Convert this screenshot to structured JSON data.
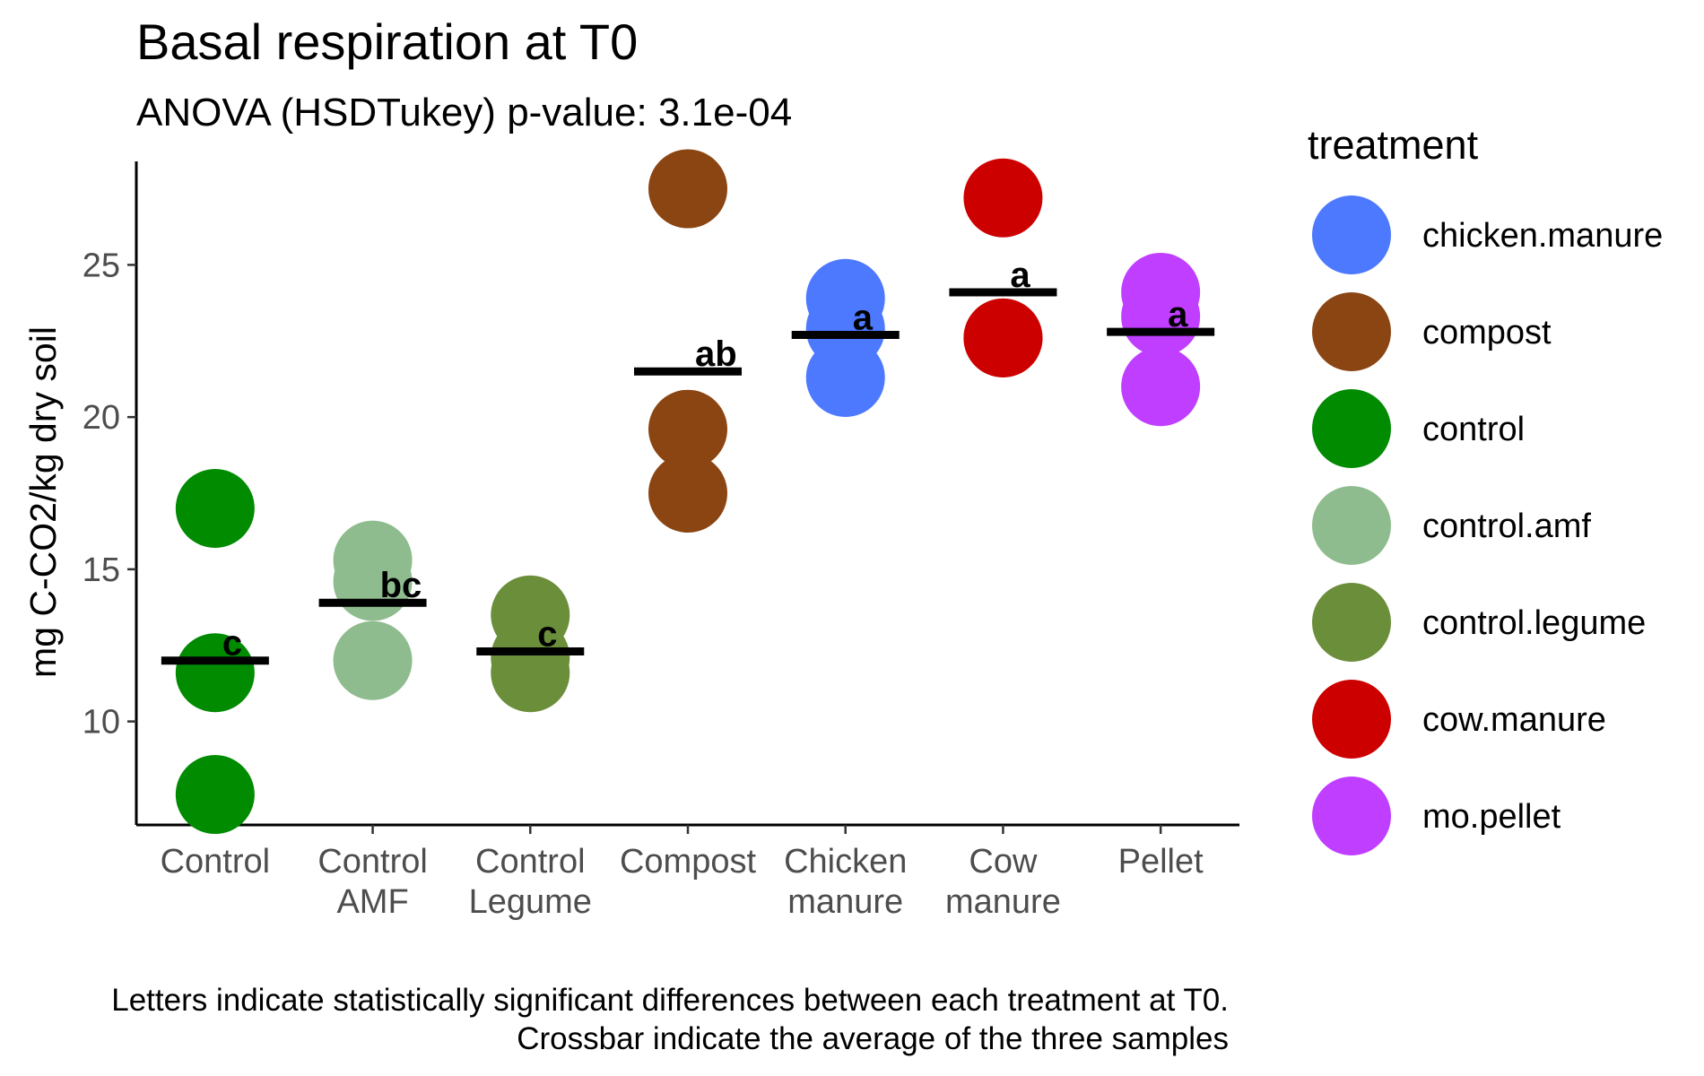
{
  "chart_data": {
    "type": "scatter",
    "title": "Basal respiration at T0",
    "subtitle": "ANOVA (HSDTukey) p-value: 3.1e-04",
    "ylabel": "mg C-CO2/kg dry soil",
    "xlabel": "",
    "ylim": [
      6.6,
      28.4
    ],
    "yticks": [
      10,
      15,
      20,
      25
    ],
    "grid": false,
    "legend_position": "right",
    "legend_title": "treatment",
    "legend": [
      {
        "label": "chicken.manure",
        "color": "#4D79FF"
      },
      {
        "label": "compost",
        "color": "#8B4513"
      },
      {
        "label": "control",
        "color": "#008B00"
      },
      {
        "label": "control.amf",
        "color": "#8FBC8F"
      },
      {
        "label": "control.legume",
        "color": "#6B8E3A"
      },
      {
        "label": "cow.manure",
        "color": "#CD0000"
      },
      {
        "label": "mo.pellet",
        "color": "#BF3EFF"
      }
    ],
    "categories": [
      {
        "label": [
          "Control"
        ],
        "treatment": "control",
        "points": [
          17.0,
          11.6,
          7.6
        ],
        "mean": 12.0,
        "letter": "c"
      },
      {
        "label": [
          "Control",
          "AMF"
        ],
        "treatment": "control.amf",
        "points": [
          15.3,
          14.6,
          12.0
        ],
        "mean": 13.9,
        "letter": "bc"
      },
      {
        "label": [
          "Control",
          "Legume"
        ],
        "treatment": "control.legume",
        "points": [
          13.5,
          12.1,
          11.6
        ],
        "mean": 12.3,
        "letter": "c"
      },
      {
        "label": [
          "Compost"
        ],
        "treatment": "compost",
        "points": [
          27.5,
          19.6,
          17.5
        ],
        "mean": 21.5,
        "letter": "ab"
      },
      {
        "label": [
          "Chicken",
          "manure"
        ],
        "treatment": "chicken.manure",
        "points": [
          23.9,
          22.9,
          21.3
        ],
        "mean": 22.7,
        "letter": "a"
      },
      {
        "label": [
          "Cow",
          "manure"
        ],
        "treatment": "cow.manure",
        "points": [
          27.2,
          22.6,
          22.6
        ],
        "mean": 24.1,
        "letter": "a"
      },
      {
        "label": [
          "Pellet"
        ],
        "treatment": "mo.pellet",
        "points": [
          24.1,
          23.3,
          21.0
        ],
        "mean": 22.8,
        "letter": "a"
      }
    ],
    "caption": [
      "Letters indicate statistically significant differences between each treatment at T0.",
      "Crossbar indicate the average of the three samples"
    ]
  }
}
